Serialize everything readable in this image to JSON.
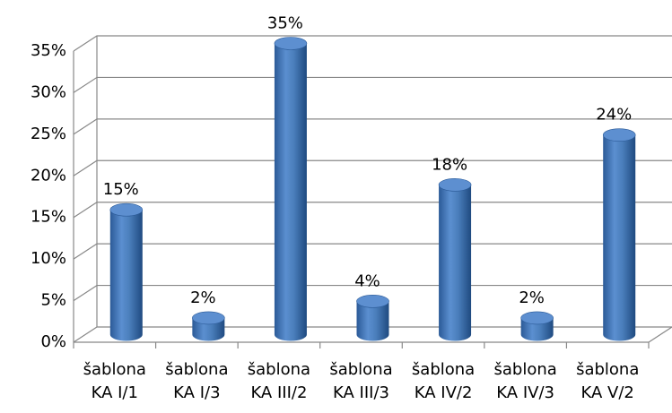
{
  "chart_data": {
    "type": "bar",
    "categories": [
      "šablona KA I/1",
      "šablona KA I/3",
      "šablona KA III/2",
      "šablona KA III/3",
      "šablona KA IV/2",
      "šablona KA IV/3",
      "šablona KA V/2"
    ],
    "values": [
      15,
      2,
      35,
      4,
      18,
      2,
      24
    ],
    "value_labels": [
      "15%",
      "2%",
      "35%",
      "4%",
      "18%",
      "2%",
      "24%"
    ],
    "color": "#4a7ebb",
    "ylim": [
      0,
      35
    ],
    "yticks": [
      {
        "value": 0,
        "label": "0%"
      },
      {
        "value": 5,
        "label": "5%"
      },
      {
        "value": 10,
        "label": "10%"
      },
      {
        "value": 15,
        "label": "15%"
      },
      {
        "value": 20,
        "label": "20%"
      },
      {
        "value": 25,
        "label": "25%"
      },
      {
        "value": 30,
        "label": "30%"
      },
      {
        "value": 35,
        "label": "35%"
      }
    ],
    "grid": true
  }
}
